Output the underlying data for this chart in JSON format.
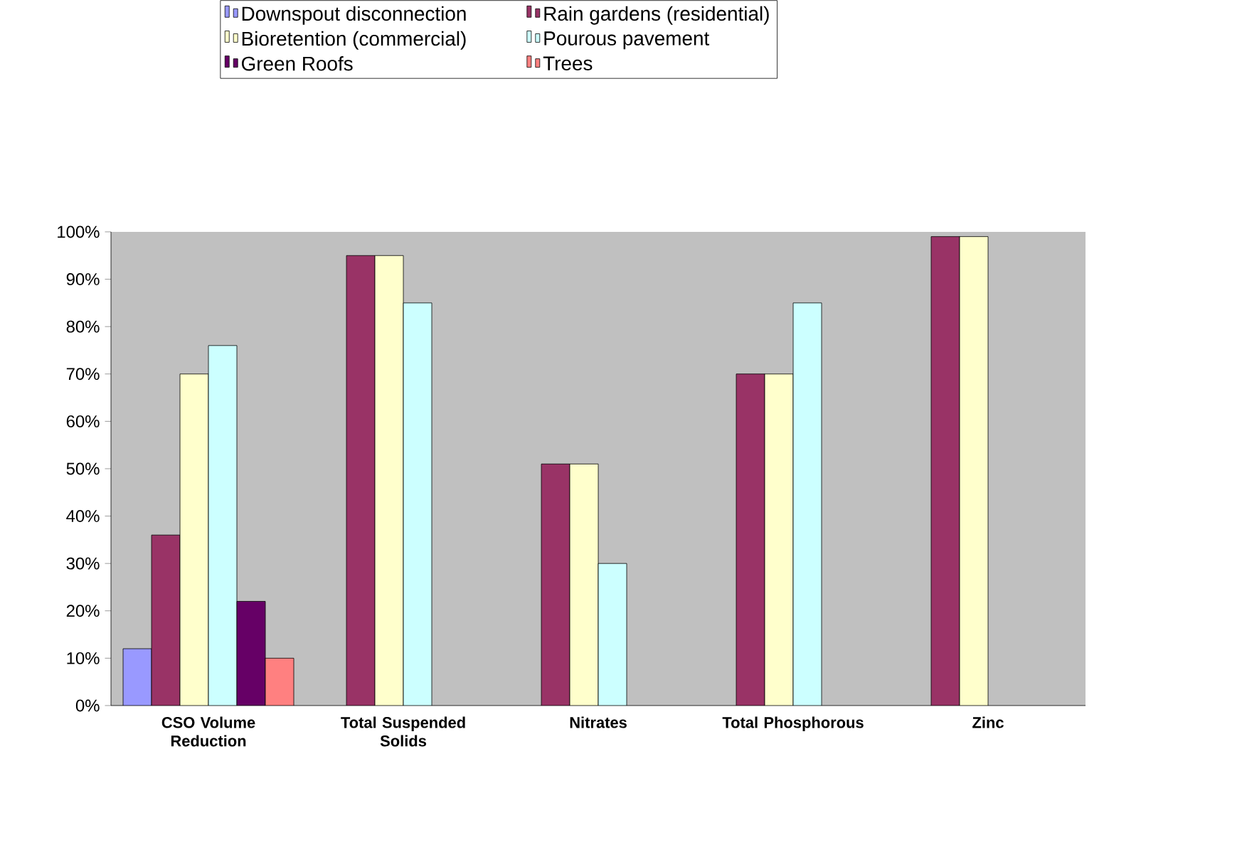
{
  "chart_data": {
    "type": "bar",
    "categories": [
      "CSO Volume Reduction",
      "Total Suspended Solids",
      "Nitrates",
      "Total Phosphorous",
      "Zinc"
    ],
    "series": [
      {
        "name": "Downspout disconnection",
        "color": "#9999ff",
        "values": [
          12,
          null,
          null,
          null,
          null
        ]
      },
      {
        "name": "Rain gardens (residential)",
        "color": "#993366",
        "values": [
          36,
          95,
          51,
          70,
          99
        ]
      },
      {
        "name": "Bioretention (commercial)",
        "color": "#ffffcc",
        "values": [
          70,
          95,
          51,
          70,
          99
        ]
      },
      {
        "name": "Pourous pavement",
        "color": "#ccffff",
        "values": [
          76,
          85,
          30,
          85,
          null
        ]
      },
      {
        "name": "Green Roofs",
        "color": "#660066",
        "values": [
          22,
          null,
          null,
          null,
          null
        ]
      },
      {
        "name": "Trees",
        "color": "#ff8080",
        "values": [
          10,
          null,
          null,
          null,
          null
        ]
      }
    ],
    "ylim": [
      0,
      100
    ],
    "yticks": [
      {
        "value": 0,
        "label": "0%"
      },
      {
        "value": 10,
        "label": "10%"
      },
      {
        "value": 20,
        "label": "20%"
      },
      {
        "value": 30,
        "label": "30%"
      },
      {
        "value": 40,
        "label": "40%"
      },
      {
        "value": 50,
        "label": "50%"
      },
      {
        "value": 60,
        "label": "60%"
      },
      {
        "value": 70,
        "label": "70%"
      },
      {
        "value": 80,
        "label": "80%"
      },
      {
        "value": 90,
        "label": "90%"
      },
      {
        "value": 100,
        "label": "100%"
      }
    ],
    "legend": "top"
  }
}
